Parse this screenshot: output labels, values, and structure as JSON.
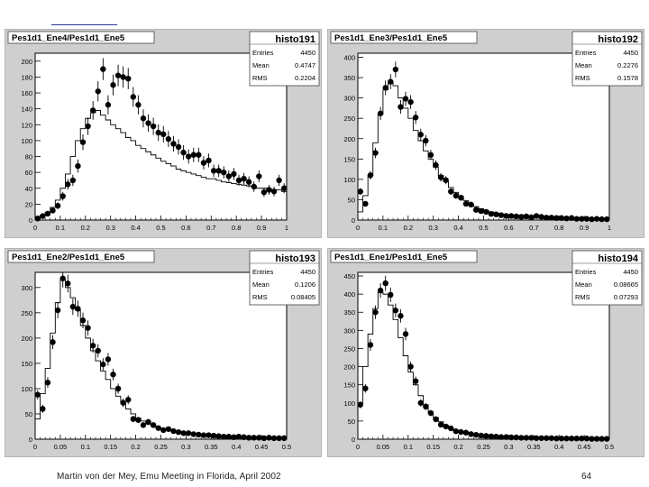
{
  "footer": {
    "caption": "Martin von der Mey, Emu Meeting in Florida, April 2002",
    "page_number": "64"
  },
  "colors": {
    "panel_bg": "#cfcfcf",
    "frame_bg": "#ffffff",
    "marker": "#000000",
    "histogram_line": "#000000"
  },
  "chart_data": [
    {
      "type": "scatter",
      "title": "Pes1d1_Ene4/Pes1d1_Ene5",
      "stats": {
        "name": "histo191",
        "entries_label": "Entries",
        "entries": "4450",
        "mean_label": "Mean",
        "mean": "0.4747",
        "rms_label": "RMS",
        "rms": "0.2204"
      },
      "xlim": [
        0,
        1
      ],
      "ylim": [
        0,
        210
      ],
      "xticks": [
        "0",
        "0.1",
        "0.2",
        "0.3",
        "0.4",
        "0.5",
        "0.6",
        "0.7",
        "0.8",
        "0.9",
        "1"
      ],
      "xtick_values": [
        0,
        0.1,
        0.2,
        0.3,
        0.4,
        0.5,
        0.6,
        0.7,
        0.8,
        0.9,
        1
      ],
      "yticks": [
        "0",
        "20",
        "40",
        "60",
        "80",
        "100",
        "120",
        "140",
        "160",
        "180",
        "200"
      ],
      "ytick_values": [
        0,
        20,
        40,
        60,
        80,
        100,
        120,
        140,
        160,
        180,
        200
      ],
      "step": {
        "x": [
          0,
          0.02,
          0.04,
          0.06,
          0.08,
          0.1,
          0.12,
          0.14,
          0.16,
          0.18,
          0.2,
          0.22,
          0.24,
          0.26,
          0.28,
          0.3,
          0.32,
          0.34,
          0.36,
          0.38,
          0.4,
          0.42,
          0.44,
          0.46,
          0.48,
          0.5,
          0.52,
          0.54,
          0.56,
          0.58,
          0.6,
          0.62,
          0.64,
          0.66,
          0.68,
          0.7,
          0.72,
          0.74,
          0.76,
          0.78,
          0.8,
          0.82,
          0.84,
          0.86,
          0.88,
          0.9,
          0.92,
          0.94,
          0.96,
          0.98
        ],
        "y": [
          3,
          6,
          10,
          16,
          25,
          40,
          58,
          80,
          100,
          115,
          128,
          135,
          138,
          132,
          126,
          120,
          115,
          110,
          104,
          100,
          94,
          90,
          86,
          82,
          78,
          74,
          71,
          68,
          64,
          62,
          60,
          58,
          56,
          54,
          52,
          52,
          50,
          48,
          47,
          46,
          45,
          44,
          43,
          42,
          40,
          40,
          39,
          38,
          38,
          36
        ]
      },
      "points": {
        "x": [
          0.01,
          0.03,
          0.05,
          0.07,
          0.09,
          0.11,
          0.13,
          0.15,
          0.17,
          0.19,
          0.21,
          0.23,
          0.25,
          0.27,
          0.29,
          0.31,
          0.33,
          0.35,
          0.37,
          0.39,
          0.41,
          0.43,
          0.45,
          0.47,
          0.49,
          0.51,
          0.53,
          0.55,
          0.57,
          0.59,
          0.61,
          0.63,
          0.65,
          0.67,
          0.69,
          0.71,
          0.73,
          0.75,
          0.77,
          0.79,
          0.81,
          0.83,
          0.85,
          0.87,
          0.89,
          0.91,
          0.93,
          0.95,
          0.97,
          0.99
        ],
        "y": [
          2,
          5,
          8,
          12,
          18,
          30,
          45,
          50,
          68,
          98,
          118,
          138,
          162,
          190,
          145,
          170,
          182,
          180,
          178,
          155,
          145,
          128,
          122,
          118,
          110,
          108,
          102,
          96,
          92,
          85,
          80,
          82,
          82,
          72,
          75,
          62,
          62,
          60,
          55,
          58,
          50,
          52,
          48,
          42,
          55,
          35,
          38,
          36,
          50,
          40
        ]
      }
    },
    {
      "type": "scatter",
      "title": "Pes1d1_Ene3/Pes1d1_Ene5",
      "stats": {
        "name": "histo192",
        "entries_label": "Entries",
        "entries": "4450",
        "mean_label": "Mean",
        "mean": "0.2276",
        "rms_label": "RMS",
        "rms": "0.1578"
      },
      "xlim": [
        0,
        1
      ],
      "ylim": [
        0,
        410
      ],
      "xticks": [
        "0",
        "0.1",
        "0.2",
        "0.3",
        "0.4",
        "0.5",
        "0.6",
        "0.7",
        "0.8",
        "0.9",
        "1"
      ],
      "xtick_values": [
        0,
        0.1,
        0.2,
        0.3,
        0.4,
        0.5,
        0.6,
        0.7,
        0.8,
        0.9,
        1
      ],
      "yticks": [
        "0",
        "50",
        "100",
        "150",
        "200",
        "250",
        "300",
        "350",
        "400"
      ],
      "ytick_values": [
        0,
        50,
        100,
        150,
        200,
        250,
        300,
        350,
        400
      ],
      "step": {
        "x": [
          0,
          0.02,
          0.04,
          0.06,
          0.08,
          0.1,
          0.12,
          0.14,
          0.16,
          0.18,
          0.2,
          0.22,
          0.24,
          0.26,
          0.28,
          0.3,
          0.32,
          0.34,
          0.36,
          0.38,
          0.4,
          0.42,
          0.44,
          0.46,
          0.48,
          0.5,
          0.52,
          0.54,
          0.56,
          0.58,
          0.6,
          0.62,
          0.64,
          0.66,
          0.68,
          0.7,
          0.72,
          0.74,
          0.76,
          0.78,
          0.8,
          0.82,
          0.84,
          0.86,
          0.88,
          0.9,
          0.92,
          0.94,
          0.96,
          0.98
        ],
        "y": [
          20,
          60,
          110,
          190,
          260,
          320,
          340,
          330,
          300,
          275,
          250,
          220,
          195,
          170,
          150,
          130,
          110,
          95,
          80,
          68,
          58,
          48,
          40,
          33,
          28,
          24,
          20,
          17,
          15,
          13,
          12,
          11,
          10,
          9,
          9,
          8,
          8,
          7,
          7,
          6,
          6,
          5,
          5,
          5,
          4,
          4,
          4,
          3,
          3,
          3
        ]
      },
      "points": {
        "x": [
          0.01,
          0.03,
          0.05,
          0.07,
          0.09,
          0.11,
          0.13,
          0.15,
          0.17,
          0.19,
          0.21,
          0.23,
          0.25,
          0.27,
          0.29,
          0.31,
          0.33,
          0.35,
          0.37,
          0.39,
          0.41,
          0.43,
          0.45,
          0.47,
          0.49,
          0.51,
          0.53,
          0.55,
          0.57,
          0.59,
          0.61,
          0.63,
          0.65,
          0.67,
          0.69,
          0.71,
          0.73,
          0.75,
          0.77,
          0.79,
          0.81,
          0.83,
          0.85,
          0.87,
          0.89,
          0.91,
          0.93,
          0.95,
          0.97,
          0.99
        ],
        "y": [
          70,
          40,
          110,
          165,
          262,
          325,
          340,
          370,
          278,
          298,
          290,
          252,
          210,
          195,
          160,
          135,
          105,
          98,
          70,
          60,
          55,
          40,
          38,
          25,
          22,
          20,
          15,
          14,
          12,
          10,
          10,
          9,
          8,
          9,
          7,
          10,
          8,
          6,
          6,
          5,
          5,
          4,
          5,
          3,
          3,
          3,
          2,
          3,
          2,
          2
        ]
      }
    },
    {
      "type": "scatter",
      "title": "Pes1d1_Ene2/Pes1d1_Ene5",
      "stats": {
        "name": "histo193",
        "entries_label": "Entries",
        "entries": "4450",
        "mean_label": "Mean",
        "mean": "0.1206",
        "rms_label": "RMS",
        "rms": "0.08405"
      },
      "xlim": [
        0,
        0.5
      ],
      "ylim": [
        0,
        330
      ],
      "xticks": [
        "0",
        "0.05",
        "0.1",
        "0.15",
        "0.2",
        "0.25",
        "0.3",
        "0.35",
        "0.4",
        "0.45",
        "0.5"
      ],
      "xtick_values": [
        0,
        0.05,
        0.1,
        0.15,
        0.2,
        0.25,
        0.3,
        0.35,
        0.4,
        0.45,
        0.5
      ],
      "yticks": [
        "0",
        "50",
        "100",
        "150",
        "200",
        "250",
        "300"
      ],
      "ytick_values": [
        0,
        50,
        100,
        150,
        200,
        250,
        300
      ],
      "step": {
        "x": [
          0,
          0.01,
          0.02,
          0.03,
          0.04,
          0.05,
          0.06,
          0.07,
          0.08,
          0.09,
          0.1,
          0.11,
          0.12,
          0.13,
          0.14,
          0.15,
          0.16,
          0.17,
          0.18,
          0.19,
          0.2,
          0.21,
          0.22,
          0.23,
          0.24,
          0.25,
          0.26,
          0.27,
          0.28,
          0.29,
          0.3,
          0.31,
          0.32,
          0.33,
          0.34,
          0.35,
          0.36,
          0.37,
          0.38,
          0.39,
          0.4,
          0.41,
          0.42,
          0.43,
          0.44,
          0.45,
          0.46,
          0.47,
          0.48,
          0.49
        ],
        "y": [
          40,
          90,
          140,
          210,
          270,
          315,
          300,
          280,
          255,
          225,
          200,
          175,
          155,
          135,
          118,
          100,
          85,
          72,
          60,
          50,
          42,
          36,
          30,
          26,
          22,
          20,
          18,
          16,
          14,
          12,
          11,
          10,
          9,
          8,
          7,
          6,
          6,
          5,
          5,
          4,
          4,
          4,
          3,
          3,
          3,
          2,
          2,
          2,
          2,
          2
        ]
      },
      "points": {
        "x": [
          0.005,
          0.015,
          0.025,
          0.035,
          0.045,
          0.055,
          0.065,
          0.075,
          0.085,
          0.095,
          0.105,
          0.115,
          0.125,
          0.135,
          0.145,
          0.155,
          0.165,
          0.175,
          0.185,
          0.195,
          0.205,
          0.215,
          0.225,
          0.235,
          0.245,
          0.255,
          0.265,
          0.275,
          0.285,
          0.295,
          0.305,
          0.315,
          0.325,
          0.335,
          0.345,
          0.355,
          0.365,
          0.375,
          0.385,
          0.395,
          0.405,
          0.415,
          0.425,
          0.435,
          0.445,
          0.455,
          0.465,
          0.475,
          0.485,
          0.495
        ],
        "y": [
          88,
          60,
          112,
          192,
          255,
          318,
          308,
          262,
          258,
          235,
          220,
          185,
          175,
          148,
          158,
          128,
          100,
          72,
          78,
          40,
          38,
          28,
          34,
          28,
          22,
          18,
          20,
          16,
          14,
          12,
          12,
          10,
          9,
          8,
          8,
          7,
          6,
          5,
          5,
          4,
          5,
          4,
          3,
          3,
          3,
          2,
          3,
          2,
          2,
          2
        ]
      }
    },
    {
      "type": "scatter",
      "title": "Pes1d1_Ene1/Pes1d1_Ene5",
      "stats": {
        "name": "histo194",
        "entries_label": "Entries",
        "entries": "4450",
        "mean_label": "Mean",
        "mean": "0.08665",
        "rms_label": "RMS",
        "rms": "0.07293"
      },
      "xlim": [
        0,
        0.5
      ],
      "ylim": [
        0,
        460
      ],
      "xticks": [
        "0",
        "0.05",
        "0.1",
        "0.15",
        "0.2",
        "0.25",
        "0.3",
        "0.35",
        "0.4",
        "0.45",
        "0.5"
      ],
      "xtick_values": [
        0,
        0.05,
        0.1,
        0.15,
        0.2,
        0.25,
        0.3,
        0.35,
        0.4,
        0.45,
        0.5
      ],
      "yticks": [
        "0",
        "50",
        "100",
        "150",
        "200",
        "250",
        "300",
        "350",
        "400",
        "450"
      ],
      "ytick_values": [
        0,
        50,
        100,
        150,
        200,
        250,
        300,
        350,
        400,
        450
      ],
      "step": {
        "x": [
          0,
          0.01,
          0.02,
          0.03,
          0.04,
          0.05,
          0.06,
          0.07,
          0.08,
          0.09,
          0.1,
          0.11,
          0.12,
          0.13,
          0.14,
          0.15,
          0.16,
          0.17,
          0.18,
          0.19,
          0.2,
          0.21,
          0.22,
          0.23,
          0.24,
          0.25,
          0.26,
          0.27,
          0.28,
          0.29,
          0.3,
          0.31,
          0.32,
          0.33,
          0.34,
          0.35,
          0.36,
          0.37,
          0.38,
          0.39,
          0.4,
          0.41,
          0.42,
          0.43,
          0.44,
          0.45,
          0.46,
          0.47,
          0.48,
          0.49
        ],
        "y": [
          100,
          200,
          290,
          360,
          405,
          400,
          370,
          330,
          280,
          230,
          185,
          150,
          120,
          95,
          75,
          60,
          48,
          38,
          30,
          24,
          20,
          17,
          14,
          12,
          10,
          9,
          8,
          7,
          6,
          6,
          5,
          5,
          4,
          4,
          4,
          3,
          3,
          3,
          3,
          2,
          2,
          2,
          2,
          2,
          2,
          2,
          1,
          1,
          1,
          1
        ]
      },
      "points": {
        "x": [
          0.005,
          0.015,
          0.025,
          0.035,
          0.045,
          0.055,
          0.065,
          0.075,
          0.085,
          0.095,
          0.105,
          0.115,
          0.125,
          0.135,
          0.145,
          0.155,
          0.165,
          0.175,
          0.185,
          0.195,
          0.205,
          0.215,
          0.225,
          0.235,
          0.245,
          0.255,
          0.265,
          0.275,
          0.285,
          0.295,
          0.305,
          0.315,
          0.325,
          0.335,
          0.345,
          0.355,
          0.365,
          0.375,
          0.385,
          0.395,
          0.405,
          0.415,
          0.425,
          0.435,
          0.445,
          0.455,
          0.465,
          0.475,
          0.485,
          0.495
        ],
        "y": [
          95,
          140,
          260,
          350,
          410,
          430,
          398,
          355,
          340,
          290,
          200,
          160,
          100,
          90,
          72,
          55,
          40,
          35,
          30,
          22,
          20,
          18,
          14,
          12,
          10,
          9,
          8,
          7,
          6,
          6,
          5,
          5,
          4,
          4,
          4,
          3,
          3,
          3,
          3,
          2,
          2,
          2,
          2,
          2,
          2,
          2,
          1,
          1,
          1,
          1
        ]
      }
    }
  ]
}
